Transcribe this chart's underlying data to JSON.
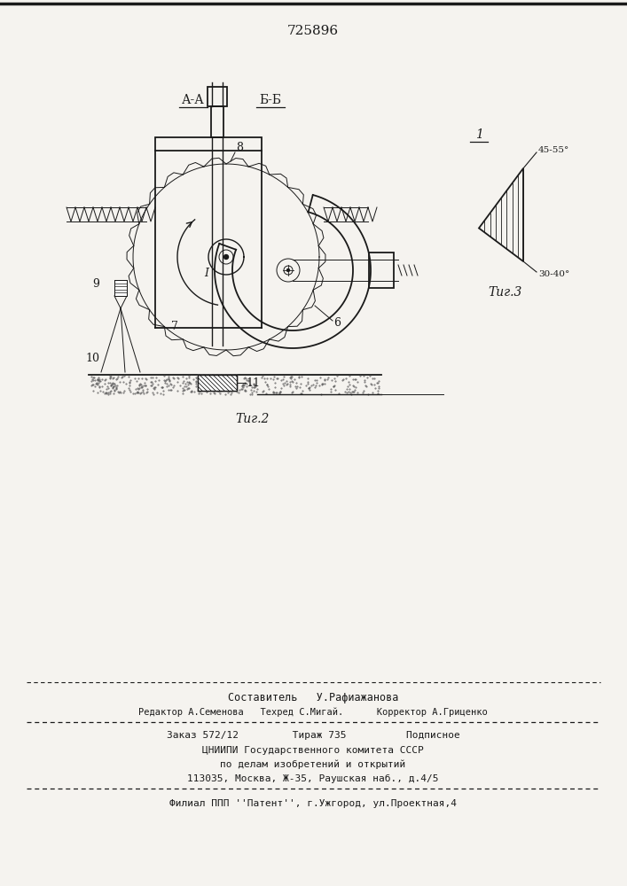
{
  "patent_number": "725896",
  "fig2_label": "Τиг.2",
  "fig3_label": "Τиг.3",
  "section_AA": "А-А",
  "section_BB": "Б-Б",
  "fig1_label": "1",
  "angle1": "45-55°",
  "angle2": "30-40°",
  "label_6": "6",
  "label_7": "7",
  "label_8": "8",
  "label_9": "9",
  "label_10": "10",
  "label_11": "11",
  "label_I": "I",
  "footer_line1": "Составитель   У.Рафиажанова",
  "footer_line2": "Редактор А.Семенова   Техред С.Мигай.      Корректор А.Гриценко",
  "footer_line3": "Заказ 572/12         Тираж 735          Подписное",
  "footer_line4": "ЦНИИПИ Государственного комитета СССР",
  "footer_line5": "по делам изобретений и открытий",
  "footer_line6": "113035, Москва, Ж-35, Раушская наб., д.4/5",
  "footer_line7": "Филиал ППП ''Патент'', г.Ужгород, ул.Проектная,4",
  "bg_color": "#f5f3ef",
  "line_color": "#1a1a1a"
}
